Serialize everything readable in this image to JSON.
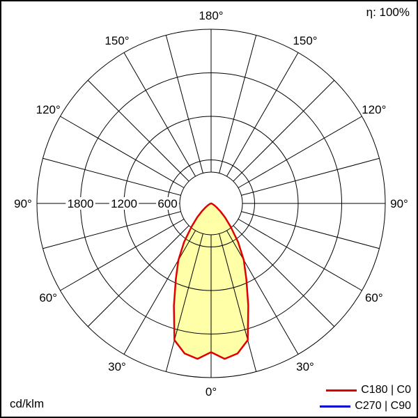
{
  "header": {
    "efficiency_label": "η: 100%"
  },
  "footer": {
    "unit_label": "cd/klm"
  },
  "legend": {
    "items": [
      {
        "label": "C180 | C0",
        "color": "#e00000"
      },
      {
        "label": "C270 | C90",
        "color": "#0000d0"
      }
    ]
  },
  "chart_data": {
    "type": "polar",
    "subtype": "photometric-luminous-intensity-distribution",
    "title": "",
    "unit": "cd/klm",
    "efficiency_percent": 100,
    "angle_tick_labels_deg": [
      0,
      30,
      60,
      90,
      120,
      150,
      180
    ],
    "angle_grid_step_deg": 15,
    "radial_tick_labels": [
      600,
      1200,
      1800
    ],
    "radial_max": 2400,
    "grid": true,
    "legend_position": "bottom-right",
    "colors": {
      "curve_c0_c180": "#e00000",
      "curve_c90_c270": "#0000d0",
      "curve_fill": "#ffffa8",
      "grid": "#000000"
    },
    "series": [
      {
        "name": "C180 | C0",
        "color": "#e00000",
        "fill": "#ffffa8",
        "symmetric": true,
        "gamma_deg": [
          0,
          5,
          10,
          15,
          20,
          25,
          30,
          35,
          40,
          45,
          50,
          55,
          60,
          70,
          80,
          90
        ],
        "values_cd_per_klm": [
          2050,
          2150,
          2100,
          1950,
          1500,
          1150,
          900,
          650,
          420,
          270,
          160,
          90,
          50,
          15,
          5,
          0
        ]
      },
      {
        "name": "C270 | C90",
        "color": "#0000d0",
        "fill": "none",
        "symmetric": true,
        "gamma_deg": [
          0,
          5,
          10,
          15,
          20,
          25,
          30,
          35,
          40,
          45,
          50,
          55,
          60,
          70,
          80,
          90
        ],
        "values_cd_per_klm": [
          2050,
          2150,
          2100,
          1950,
          1500,
          1150,
          900,
          650,
          420,
          270,
          160,
          90,
          50,
          15,
          5,
          0
        ]
      }
    ]
  }
}
